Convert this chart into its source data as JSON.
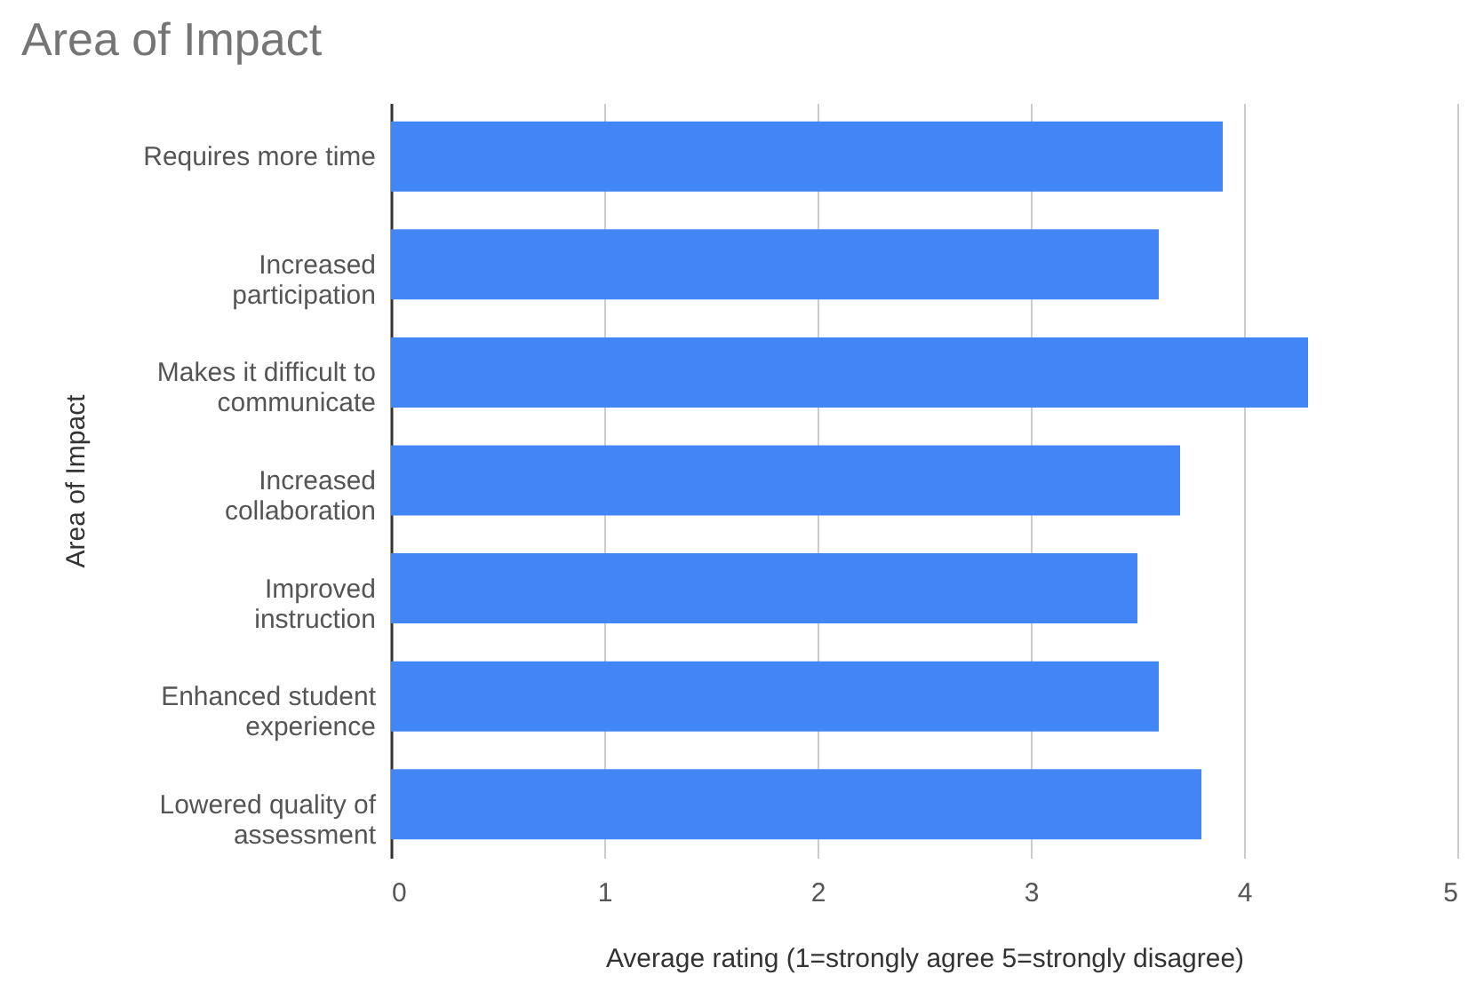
{
  "chart_data": {
    "type": "bar",
    "orientation": "horizontal",
    "title": "Area of Impact",
    "xlabel": "Average rating (1=strongly agree 5=strongly disagree)",
    "ylabel": "Area of Impact",
    "categories": [
      "Requires more time",
      "Increased participation",
      "Makes it difficult to communicate",
      "Increased collaboration",
      "Improved instruction",
      "Enhanced student experience",
      "Lowered quality of assessment"
    ],
    "values": [
      3.9,
      3.6,
      4.3,
      3.7,
      3.5,
      3.6,
      3.8
    ],
    "color": "#4285f4",
    "xlim": [
      0,
      5
    ],
    "xticks": [
      0,
      1,
      2,
      3,
      4,
      5
    ],
    "grid": "x"
  }
}
